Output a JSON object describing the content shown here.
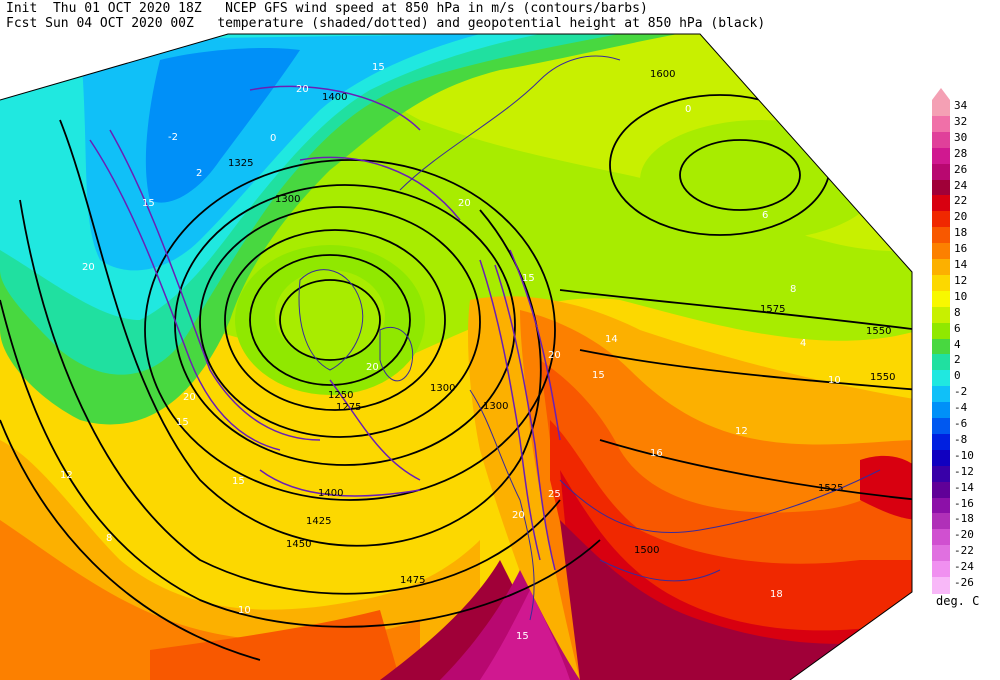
{
  "header": {
    "init_line": "Init  Thu 01 OCT 2020 18Z   NCEP GFS wind speed at 850 hPa in m/s (contours/barbs)",
    "fcst_line": "Fcst Sun 04 OCT 2020 00Z   temperature (shaded/dotted) and geopotential height at 850 hPa (black)"
  },
  "colorbar": {
    "units": "deg. C",
    "levels": [
      {
        "label": "34",
        "color": "#f4a0b4"
      },
      {
        "label": "32",
        "color": "#f070a8"
      },
      {
        "label": "30",
        "color": "#e0409a"
      },
      {
        "label": "28",
        "color": "#d01890"
      },
      {
        "label": "26",
        "color": "#b80870"
      },
      {
        "label": "24",
        "color": "#a00038"
      },
      {
        "label": "22",
        "color": "#d80010"
      },
      {
        "label": "20",
        "color": "#f02800"
      },
      {
        "label": "18",
        "color": "#f85800"
      },
      {
        "label": "16",
        "color": "#fc8000"
      },
      {
        "label": "14",
        "color": "#fcb000"
      },
      {
        "label": "12",
        "color": "#fcd800"
      },
      {
        "label": "10",
        "color": "#f8f800"
      },
      {
        "label": "8",
        "color": "#c8f000"
      },
      {
        "label": "6",
        "color": "#90e800"
      },
      {
        "label": "4",
        "color": "#48d840"
      },
      {
        "label": "2",
        "color": "#20e0a0"
      },
      {
        "label": "0",
        "color": "#20e8e0"
      },
      {
        "label": "-2",
        "color": "#10c0f8"
      },
      {
        "label": "-4",
        "color": "#0090f8"
      },
      {
        "label": "-6",
        "color": "#0058f0"
      },
      {
        "label": "-8",
        "color": "#0020e0"
      },
      {
        "label": "-10",
        "color": "#1000c0"
      },
      {
        "label": "-12",
        "color": "#3800a8"
      },
      {
        "label": "-14",
        "color": "#600098"
      },
      {
        "label": "-16",
        "color": "#8c10a8"
      },
      {
        "label": "-18",
        "color": "#b030b8"
      },
      {
        "label": "-20",
        "color": "#d050d0"
      },
      {
        "label": "-22",
        "color": "#e070e0"
      },
      {
        "label": "-24",
        "color": "#f090f0"
      },
      {
        "label": "-26",
        "color": "#f8b8f8"
      }
    ]
  },
  "height_labels": [
    "1600",
    "1575",
    "1550",
    "1550",
    "1525",
    "1500",
    "1475",
    "1450",
    "1425",
    "1400",
    "1400",
    "1325",
    "1300",
    "1300",
    "1300",
    "1275",
    "1250"
  ],
  "wind_labels": [
    "15",
    "20",
    "15",
    "20",
    "15",
    "20",
    "15",
    "20",
    "25",
    "20",
    "15",
    "20",
    "15",
    "20",
    "15"
  ],
  "temp_labels": [
    "-2",
    "0",
    "0",
    "2",
    "4",
    "6",
    "8",
    "10",
    "12",
    "14",
    "16",
    "18",
    "12",
    "10",
    "8"
  ]
}
